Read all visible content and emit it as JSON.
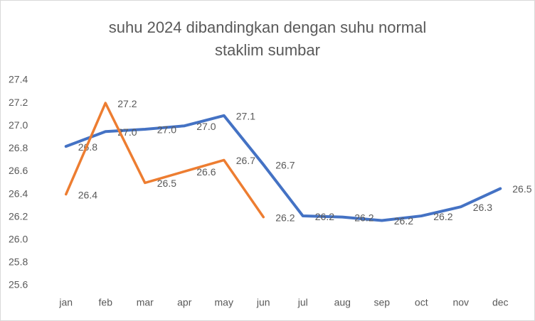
{
  "chart_data": {
    "type": "line",
    "title": [
      "suhu 2024 dibandingkan dengan suhu normal",
      "staklim sumbar"
    ],
    "categories": [
      "jan",
      "feb",
      "mar",
      "apr",
      "may",
      "jun",
      "jul",
      "aug",
      "sep",
      "oct",
      "nov",
      "dec"
    ],
    "series": [
      {
        "color": "#4472c4",
        "values": [
          26.82,
          26.95,
          26.97,
          27.0,
          27.09,
          26.66,
          26.21,
          26.2,
          26.17,
          26.21,
          26.29,
          26.45
        ],
        "value_labels": [
          "26.8",
          "27.0",
          "27.0",
          "27.0",
          "27.1",
          "26.7",
          "26.2",
          "26.2",
          "26.2",
          "26.2",
          "26.3",
          "26.5"
        ]
      },
      {
        "color": "#ed7d31",
        "values": [
          26.4,
          27.2,
          26.5,
          26.6,
          26.7,
          26.2,
          null,
          null,
          null,
          null,
          null,
          null
        ]
      }
    ],
    "ylim": [
      25.6,
      27.4
    ],
    "yticks": [
      25.6,
      25.8,
      {
        "value": 26.0,
        "label": "26.0"
      },
      26.2,
      26.4,
      26.6,
      26.8,
      {
        "value": 27.0,
        "label": "27.0"
      },
      27.2,
      27.4
    ],
    "grid": false
  }
}
